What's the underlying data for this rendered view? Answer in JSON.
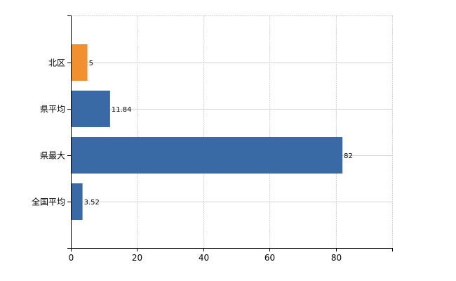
{
  "chart_data": {
    "type": "bar",
    "orientation": "horizontal",
    "categories": [
      "北区",
      "県平均",
      "県最大",
      "全国平均"
    ],
    "values": [
      5,
      11.84,
      82,
      3.52
    ],
    "data_labels": [
      "5",
      "11.84",
      "82",
      "3.52"
    ],
    "bar_colors": [
      "#f0902f",
      "#3a6aa6",
      "#3a6aa6",
      "#3a6aa6"
    ],
    "xlim": [
      0,
      97
    ],
    "x_ticks": [
      0,
      20,
      40,
      60,
      80
    ],
    "title": "",
    "xlabel": "",
    "ylabel": "",
    "grid": true,
    "legend": "none"
  }
}
